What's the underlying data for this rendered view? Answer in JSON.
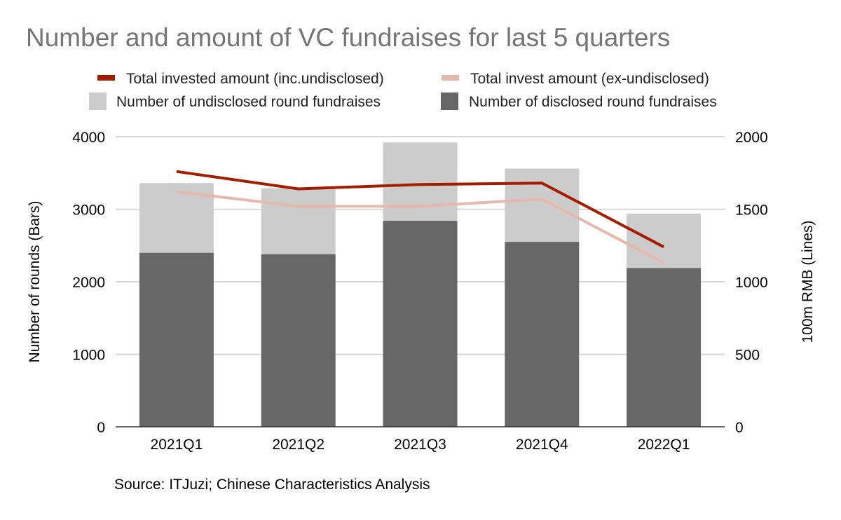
{
  "chart_data": {
    "type": "bar",
    "title": "Number and amount of VC fundraises for last 5 quarters",
    "categories": [
      "2021Q1",
      "2021Q2",
      "2021Q3",
      "2021Q4",
      "2022Q1"
    ],
    "bar_series": [
      {
        "name": "Number of disclosed round fundraises",
        "values": [
          2400,
          2380,
          2840,
          2550,
          2190
        ],
        "color": "#666666"
      },
      {
        "name": "Number of undisclosed round fundraises",
        "values": [
          960,
          910,
          1080,
          1010,
          750
        ],
        "color": "#cccccc"
      }
    ],
    "line_series": [
      {
        "name": "Total invested amount (inc.undisclosed)",
        "values": [
          1760,
          1640,
          1670,
          1680,
          1240
        ],
        "color": "#a61c00"
      },
      {
        "name": "Total invest amount (ex-undisclosed)",
        "values": [
          1620,
          1520,
          1520,
          1570,
          1130
        ],
        "color": "#e6b8af"
      }
    ],
    "y_left": {
      "label": "Number of rounds (Bars)",
      "min": 0,
      "max": 4000,
      "ticks": [
        "0",
        "1000",
        "2000",
        "3000",
        "4000"
      ]
    },
    "y_right": {
      "label": "100m RMB (Lines)",
      "min": 0,
      "max": 2000,
      "ticks": [
        "0",
        "500",
        "1000",
        "1500",
        "2000"
      ]
    },
    "legend": [
      {
        "label": "Total invested amount (inc.undisclosed)",
        "kind": "line",
        "color": "#a61c00"
      },
      {
        "label": "Total invest amount (ex-undisclosed)",
        "kind": "line",
        "color": "#e6b8af"
      },
      {
        "label": "Number of undisclosed round fundraises",
        "kind": "box",
        "color": "#cccccc"
      },
      {
        "label": "Number of disclosed round fundraises",
        "kind": "box",
        "color": "#666666"
      }
    ],
    "legend_position": "top",
    "grid": true
  },
  "source": "Source: ITJuzi; Chinese Characteristics Analysis"
}
